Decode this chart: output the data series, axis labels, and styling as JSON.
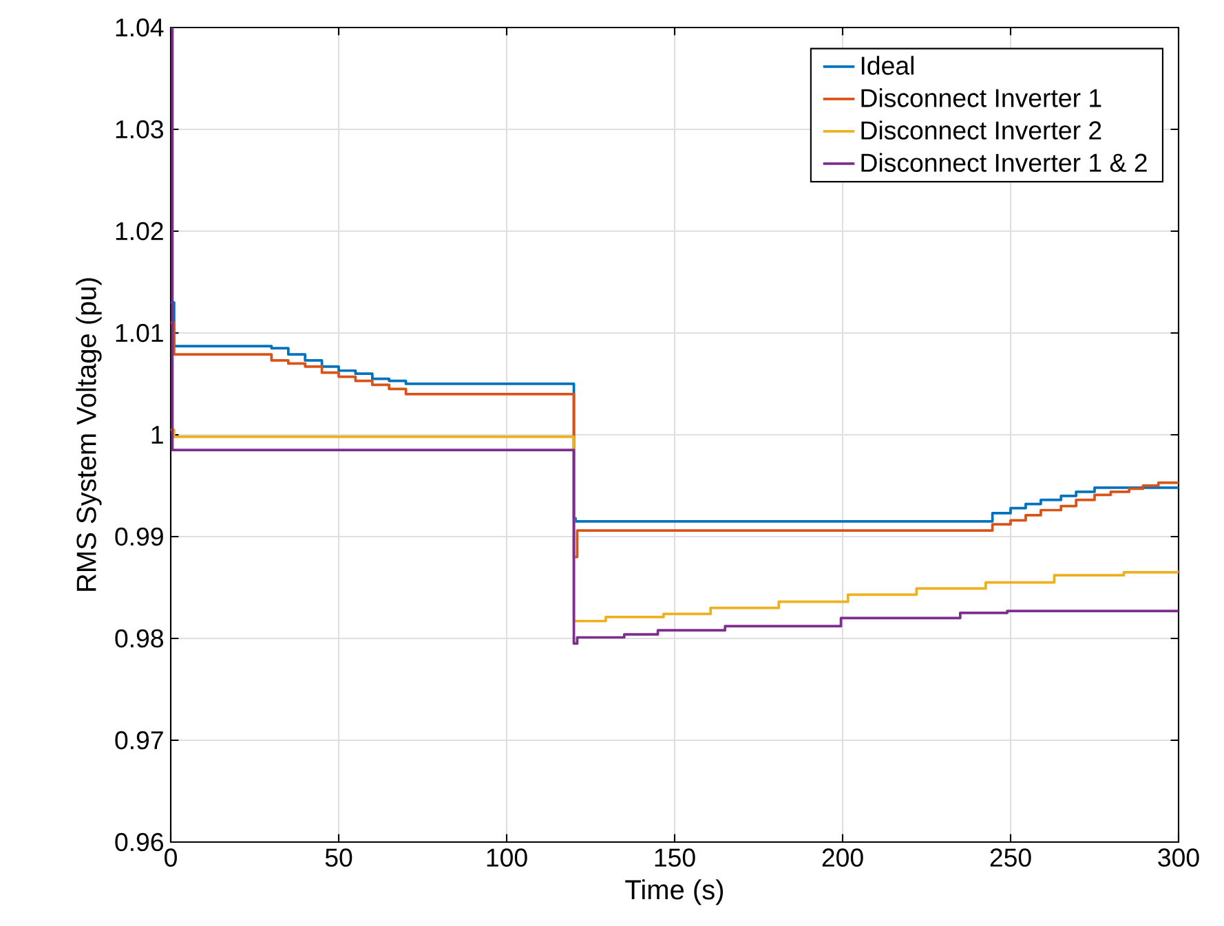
{
  "chart_data": {
    "type": "step",
    "xlabel": "Time (s)",
    "ylabel": "RMS System Voltage (pu)",
    "xlim": [
      0,
      300
    ],
    "ylim": [
      0.96,
      1.04
    ],
    "xticks": [
      0,
      50,
      100,
      150,
      200,
      250,
      300
    ],
    "yticks": [
      0.96,
      0.97,
      0.98,
      0.99,
      1,
      1.01,
      1.02,
      1.03,
      1.04
    ],
    "grid": true,
    "legend": "top right",
    "series": [
      {
        "name": "Ideal",
        "color": "#0072bd",
        "x": [
          0,
          1,
          30,
          35,
          40,
          45,
          50,
          55,
          60,
          65,
          70,
          120,
          120.5,
          224,
          244.6,
          250,
          254.5,
          259,
          265,
          269.5,
          275,
          300
        ],
        "values": [
          1.013,
          1.0087,
          1.0085,
          1.0079,
          1.0073,
          1.0067,
          1.0063,
          1.006,
          1.0055,
          1.0053,
          1.005,
          0.9918,
          0.9915,
          0.9915,
          0.9923,
          0.9928,
          0.9932,
          0.9936,
          0.994,
          0.9944,
          0.9948,
          0.9947
        ]
      },
      {
        "name": "Disconnect Inverter 1",
        "color": "#d95319",
        "x": [
          0,
          1,
          30,
          35,
          40,
          45,
          50,
          55,
          60,
          65,
          70,
          120,
          121,
          244.6,
          250,
          254.5,
          259,
          265,
          269.5,
          275,
          279.8,
          285.3,
          289.4,
          294,
          300
        ],
        "values": [
          1.011,
          1.0079,
          1.0073,
          1.007,
          1.0067,
          1.0061,
          1.0057,
          1.0053,
          1.0049,
          1.0045,
          1.004,
          0.988,
          0.9906,
          0.9912,
          0.9916,
          0.9921,
          0.9926,
          0.993,
          0.9936,
          0.9941,
          0.9944,
          0.9947,
          0.995,
          0.9953,
          0.9953
        ]
      },
      {
        "name": "Disconnect Inverter 2",
        "color": "#edb120",
        "x": [
          0,
          1,
          120,
          129.5,
          146.7,
          160.7,
          181,
          201.6,
          222,
          242.6,
          263,
          283.7,
          300
        ],
        "values": [
          1.0005,
          0.9998,
          0.9817,
          0.9821,
          0.9824,
          0.983,
          0.9836,
          0.9843,
          0.9849,
          0.9855,
          0.9862,
          0.9865,
          0.9867
        ]
      },
      {
        "name": "Disconnect Inverter 1 & 2",
        "color": "#7e2f8e",
        "x": [
          0,
          0.5,
          120,
          121,
          135,
          145,
          165,
          199.5,
          235,
          249,
          300
        ],
        "values": [
          1.04,
          0.9985,
          0.9795,
          0.9801,
          0.9804,
          0.9808,
          0.9812,
          0.982,
          0.9825,
          0.9827,
          0.9827
        ]
      }
    ]
  }
}
